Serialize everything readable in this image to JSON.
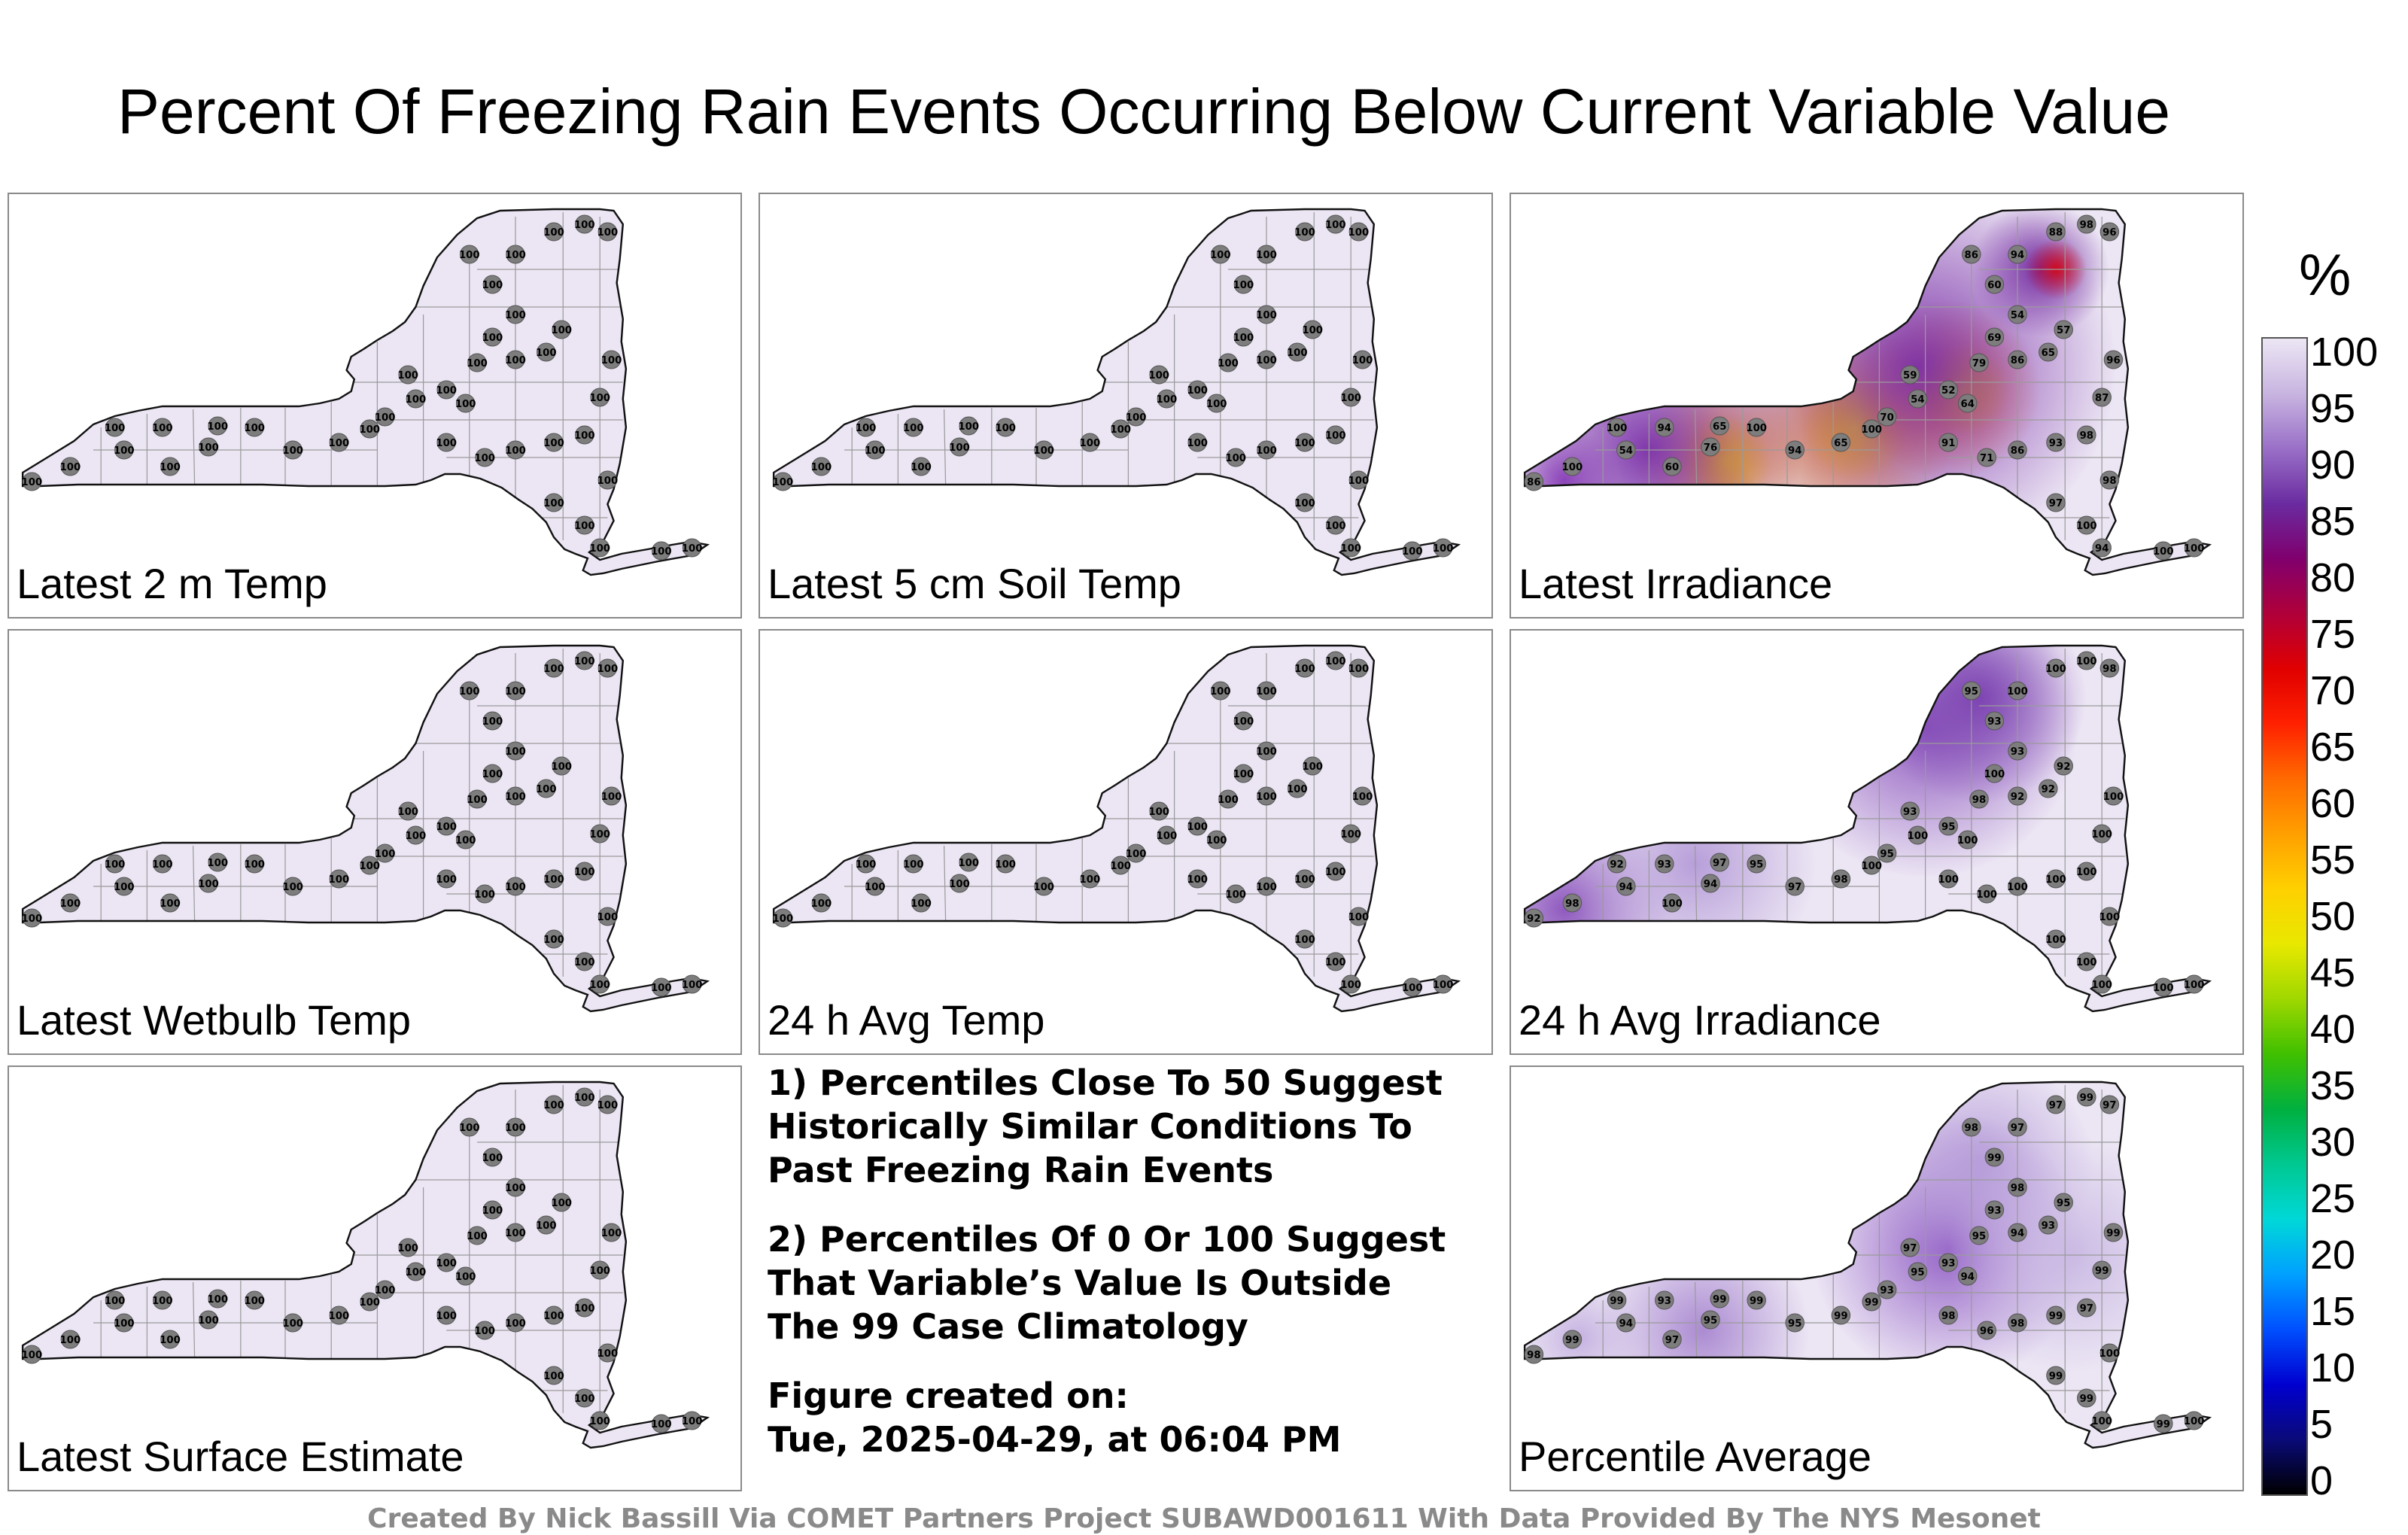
{
  "title": "Percent Of Freezing Rain Events Occurring Below Current Variable Value",
  "unit_label": "%",
  "colorbar": {
    "ticks": [
      "100",
      "95",
      "90",
      "85",
      "80",
      "75",
      "70",
      "65",
      "60",
      "55",
      "50",
      "45",
      "40",
      "35",
      "30",
      "25",
      "20",
      "15",
      "10",
      "5",
      "0"
    ],
    "colors": [
      "#000000",
      "#0a0a7a",
      "#0000d0",
      "#0050ff",
      "#00a0ff",
      "#00d8d8",
      "#00c890",
      "#00b040",
      "#40c000",
      "#a0d800",
      "#e8e800",
      "#ffd000",
      "#ffa000",
      "#ff6a00",
      "#ff2000",
      "#e00000",
      "#b0003a",
      "#80006e",
      "#6a2ba0",
      "#9a70c8",
      "#c8b4e0",
      "#ece6f4"
    ]
  },
  "panels": [
    {
      "label": "Latest 2 m Temp",
      "stations": [
        {
          "v": "100"
        },
        {
          "v": "100"
        },
        {
          "v": "100"
        },
        {
          "v": "100"
        },
        {
          "v": "100"
        },
        {
          "v": "100"
        },
        {
          "v": "100"
        },
        {
          "v": "100"
        },
        {
          "v": "100"
        },
        {
          "v": "100"
        },
        {
          "v": "100"
        },
        {
          "v": "100"
        },
        {
          "v": "100"
        },
        {
          "v": "100"
        },
        {
          "v": "100"
        },
        {
          "v": "100"
        },
        {
          "v": "100"
        },
        {
          "v": "100"
        },
        {
          "v": "100"
        },
        {
          "v": "100"
        },
        {
          "v": "100"
        },
        {
          "v": "100"
        },
        {
          "v": "100"
        },
        {
          "v": "100"
        },
        {
          "v": "100"
        },
        {
          "v": "100"
        },
        {
          "v": "100"
        },
        {
          "v": "100"
        },
        {
          "v": "100"
        },
        {
          "v": "100"
        },
        {
          "v": "100"
        },
        {
          "v": "100"
        },
        {
          "v": "100"
        },
        {
          "v": "100"
        },
        {
          "v": "100"
        },
        {
          "v": "100"
        },
        {
          "v": "100"
        },
        {
          "v": "100"
        },
        {
          "v": "100"
        },
        {
          "v": "100"
        },
        {
          "v": "100"
        },
        {
          "v": "100"
        }
      ]
    },
    {
      "label": "Latest 5 cm Soil Temp",
      "stations": [
        {
          "v": "100"
        },
        {
          "v": "100"
        },
        {
          "v": "100"
        },
        {
          "v": "100"
        },
        {
          "v": "100"
        },
        {
          "v": "100"
        },
        {
          "v": "100"
        },
        {
          "v": "100"
        },
        {
          "v": "100"
        },
        {
          "v": "100"
        },
        {
          "v": "100"
        },
        {
          "v": "100"
        },
        {
          "v": "100"
        },
        {
          "v": "100"
        },
        {
          "v": "100"
        },
        {
          "v": "100"
        },
        {
          "v": "100"
        },
        {
          "v": "100"
        },
        {
          "v": "100"
        },
        {
          "v": "100"
        },
        {
          "v": "100"
        },
        {
          "v": "100"
        },
        {
          "v": "100"
        },
        {
          "v": "100"
        },
        {
          "v": "100"
        },
        {
          "v": "100"
        },
        {
          "v": "100"
        },
        {
          "v": "100"
        },
        {
          "v": "100"
        },
        {
          "v": "100"
        },
        {
          "v": "100"
        },
        {
          "v": "100"
        },
        {
          "v": "100"
        },
        {
          "v": "100"
        },
        {
          "v": "100"
        },
        {
          "v": "100"
        },
        {
          "v": "100"
        },
        {
          "v": "100"
        },
        {
          "v": "100"
        },
        {
          "v": "100"
        },
        {
          "v": "100"
        },
        {
          "v": "100"
        }
      ]
    },
    {
      "label": "Latest Irradiance",
      "stations": [
        {
          "v": "86"
        },
        {
          "v": "100"
        },
        {
          "v": "100"
        },
        {
          "v": "94"
        },
        {
          "v": "54"
        },
        {
          "v": "60"
        },
        {
          "v": "76"
        },
        {
          "v": "65"
        },
        {
          "v": "100"
        },
        {
          "v": "94"
        },
        {
          "v": "65"
        },
        {
          "v": "100"
        },
        {
          "v": "70"
        },
        {
          "v": "54"
        },
        {
          "v": "59"
        },
        {
          "v": "52"
        },
        {
          "v": "64"
        },
        {
          "v": "79"
        },
        {
          "v": "69"
        },
        {
          "v": "86"
        },
        {
          "v": "65"
        },
        {
          "v": "57"
        },
        {
          "v": "54"
        },
        {
          "v": "60"
        },
        {
          "v": "86"
        },
        {
          "v": "94"
        },
        {
          "v": "98"
        },
        {
          "v": "96"
        },
        {
          "v": "88"
        },
        {
          "v": "91"
        },
        {
          "v": "71"
        },
        {
          "v": "86"
        },
        {
          "v": "93"
        },
        {
          "v": "98"
        },
        {
          "v": "87"
        },
        {
          "v": "96"
        },
        {
          "v": "98"
        },
        {
          "v": "100"
        },
        {
          "v": "97"
        },
        {
          "v": "94"
        },
        {
          "v": "100"
        },
        {
          "v": "100"
        }
      ]
    },
    {
      "label": "Latest Wetbulb Temp",
      "stations": [
        {
          "v": "100"
        },
        {
          "v": "100"
        },
        {
          "v": "100"
        },
        {
          "v": "100"
        },
        {
          "v": "100"
        },
        {
          "v": "100"
        },
        {
          "v": "100"
        },
        {
          "v": "100"
        },
        {
          "v": "100"
        },
        {
          "v": "100"
        },
        {
          "v": "100"
        },
        {
          "v": "100"
        },
        {
          "v": "100"
        },
        {
          "v": "100"
        },
        {
          "v": "100"
        },
        {
          "v": "100"
        },
        {
          "v": "100"
        },
        {
          "v": "100"
        },
        {
          "v": "100"
        },
        {
          "v": "100"
        },
        {
          "v": "100"
        },
        {
          "v": "100"
        },
        {
          "v": "100"
        },
        {
          "v": "100"
        },
        {
          "v": "100"
        },
        {
          "v": "100"
        },
        {
          "v": "100"
        },
        {
          "v": "100"
        },
        {
          "v": "100"
        },
        {
          "v": "100"
        },
        {
          "v": "100"
        },
        {
          "v": "100"
        },
        {
          "v": "100"
        },
        {
          "v": "100"
        },
        {
          "v": "100"
        },
        {
          "v": "100"
        },
        {
          "v": "100"
        },
        {
          "v": "100"
        },
        {
          "v": "100"
        },
        {
          "v": "100"
        },
        {
          "v": "100"
        },
        {
          "v": "100"
        }
      ]
    },
    {
      "label": "24 h Avg Temp",
      "stations": [
        {
          "v": "100"
        },
        {
          "v": "100"
        },
        {
          "v": "100"
        },
        {
          "v": "100"
        },
        {
          "v": "100"
        },
        {
          "v": "100"
        },
        {
          "v": "100"
        },
        {
          "v": "100"
        },
        {
          "v": "100"
        },
        {
          "v": "100"
        },
        {
          "v": "100"
        },
        {
          "v": "100"
        },
        {
          "v": "100"
        },
        {
          "v": "100"
        },
        {
          "v": "100"
        },
        {
          "v": "100"
        },
        {
          "v": "100"
        },
        {
          "v": "100"
        },
        {
          "v": "100"
        },
        {
          "v": "100"
        },
        {
          "v": "100"
        },
        {
          "v": "100"
        },
        {
          "v": "100"
        },
        {
          "v": "100"
        },
        {
          "v": "100"
        },
        {
          "v": "100"
        },
        {
          "v": "100"
        },
        {
          "v": "100"
        },
        {
          "v": "100"
        },
        {
          "v": "100"
        },
        {
          "v": "100"
        },
        {
          "v": "100"
        },
        {
          "v": "100"
        },
        {
          "v": "100"
        },
        {
          "v": "100"
        },
        {
          "v": "100"
        },
        {
          "v": "100"
        },
        {
          "v": "100"
        },
        {
          "v": "100"
        },
        {
          "v": "100"
        },
        {
          "v": "100"
        },
        {
          "v": "100"
        }
      ]
    },
    {
      "label": "24 h Avg Irradiance",
      "stations": [
        {
          "v": "92"
        },
        {
          "v": "98"
        },
        {
          "v": "92"
        },
        {
          "v": "93"
        },
        {
          "v": "94"
        },
        {
          "v": "100"
        },
        {
          "v": "94"
        },
        {
          "v": "97"
        },
        {
          "v": "95"
        },
        {
          "v": "97"
        },
        {
          "v": "98"
        },
        {
          "v": "100"
        },
        {
          "v": "95"
        },
        {
          "v": "100"
        },
        {
          "v": "93"
        },
        {
          "v": "95"
        },
        {
          "v": "100"
        },
        {
          "v": "98"
        },
        {
          "v": "100"
        },
        {
          "v": "92"
        },
        {
          "v": "92"
        },
        {
          "v": "92"
        },
        {
          "v": "93"
        },
        {
          "v": "93"
        },
        {
          "v": "95"
        },
        {
          "v": "100"
        },
        {
          "v": "100"
        },
        {
          "v": "98"
        },
        {
          "v": "100"
        },
        {
          "v": "100"
        },
        {
          "v": "100"
        },
        {
          "v": "100"
        },
        {
          "v": "100"
        },
        {
          "v": "100"
        },
        {
          "v": "100"
        },
        {
          "v": "100"
        },
        {
          "v": "100"
        },
        {
          "v": "100"
        },
        {
          "v": "100"
        },
        {
          "v": "100"
        },
        {
          "v": "100"
        },
        {
          "v": "100"
        }
      ]
    },
    {
      "label": "Latest Surface Estimate",
      "stations": [
        {
          "v": "100"
        },
        {
          "v": "100"
        },
        {
          "v": "100"
        },
        {
          "v": "100"
        },
        {
          "v": "100"
        },
        {
          "v": "100"
        },
        {
          "v": "100"
        },
        {
          "v": "100"
        },
        {
          "v": "100"
        },
        {
          "v": "100"
        },
        {
          "v": "100"
        },
        {
          "v": "100"
        },
        {
          "v": "100"
        },
        {
          "v": "100"
        },
        {
          "v": "100"
        },
        {
          "v": "100"
        },
        {
          "v": "100"
        },
        {
          "v": "100"
        },
        {
          "v": "100"
        },
        {
          "v": "100"
        },
        {
          "v": "100"
        },
        {
          "v": "100"
        },
        {
          "v": "100"
        },
        {
          "v": "100"
        },
        {
          "v": "100"
        },
        {
          "v": "100"
        },
        {
          "v": "100"
        },
        {
          "v": "100"
        },
        {
          "v": "100"
        },
        {
          "v": "100"
        },
        {
          "v": "100"
        },
        {
          "v": "100"
        },
        {
          "v": "100"
        },
        {
          "v": "100"
        },
        {
          "v": "100"
        },
        {
          "v": "100"
        },
        {
          "v": "100"
        },
        {
          "v": "100"
        },
        {
          "v": "100"
        },
        {
          "v": "100"
        },
        {
          "v": "100"
        },
        {
          "v": "100"
        }
      ]
    },
    {
      "label": "Percentile Average",
      "stations": [
        {
          "v": "98"
        },
        {
          "v": "99"
        },
        {
          "v": "99"
        },
        {
          "v": "93"
        },
        {
          "v": "94"
        },
        {
          "v": "97"
        },
        {
          "v": "95"
        },
        {
          "v": "99"
        },
        {
          "v": "99"
        },
        {
          "v": "95"
        },
        {
          "v": "99"
        },
        {
          "v": "99"
        },
        {
          "v": "93"
        },
        {
          "v": "95"
        },
        {
          "v": "97"
        },
        {
          "v": "93"
        },
        {
          "v": "94"
        },
        {
          "v": "95"
        },
        {
          "v": "93"
        },
        {
          "v": "94"
        },
        {
          "v": "93"
        },
        {
          "v": "95"
        },
        {
          "v": "98"
        },
        {
          "v": "99"
        },
        {
          "v": "98"
        },
        {
          "v": "97"
        },
        {
          "v": "99"
        },
        {
          "v": "97"
        },
        {
          "v": "97"
        },
        {
          "v": "98"
        },
        {
          "v": "96"
        },
        {
          "v": "98"
        },
        {
          "v": "99"
        },
        {
          "v": "97"
        },
        {
          "v": "99"
        },
        {
          "v": "99"
        },
        {
          "v": "100"
        },
        {
          "v": "99"
        },
        {
          "v": "99"
        },
        {
          "v": "100"
        },
        {
          "v": "99"
        },
        {
          "v": "100"
        }
      ]
    }
  ],
  "notes": [
    "1) Percentiles Close To 50 Suggest\nHistorically Similar Conditions To\nPast Freezing Rain Events",
    "2) Percentiles Of 0 Or 100 Suggest\nThat Variable’s Value Is Outside\nThe 99 Case Climatology",
    "Figure created on:\nTue, 2025-04-29, at 06:04 PM"
  ],
  "credit": "Created By Nick Bassill Via COMET Partners Project SUBAWD001611 With Data Provided By The NYS Mesonet"
}
